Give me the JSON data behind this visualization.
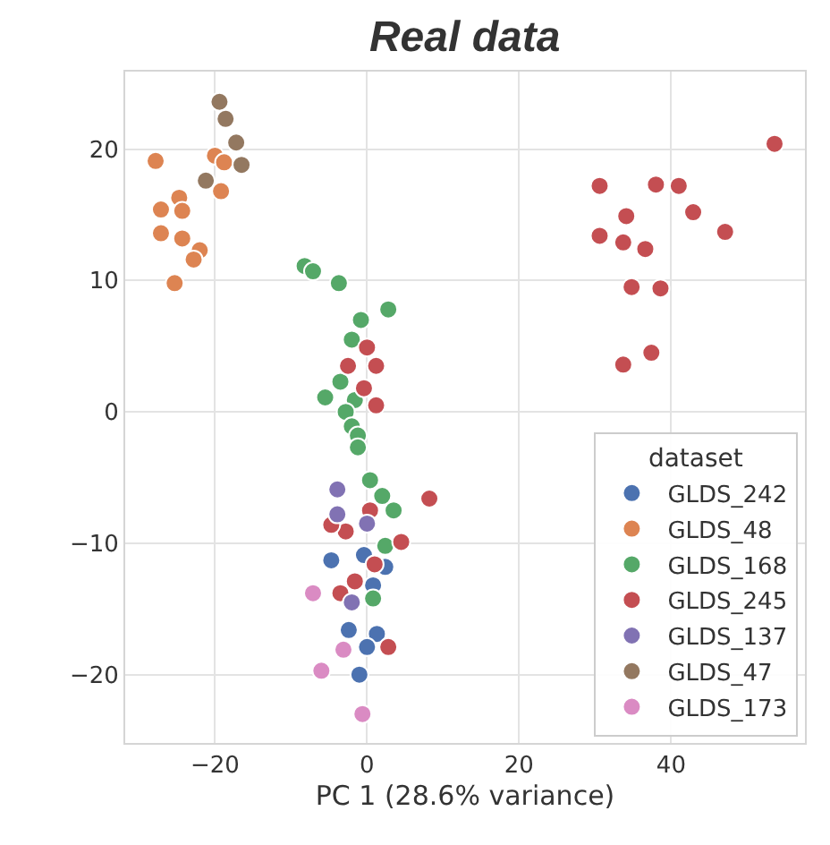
{
  "chart_data": {
    "type": "scatter",
    "title": "Real data",
    "xlabel": "PC 1 (28.6% variance)",
    "legend_title": "dataset",
    "legend": "bottom right",
    "grid": true,
    "marker": "circle",
    "xlim": [
      -31.8,
      57.6
    ],
    "ylim": [
      -25.2,
      25.9
    ],
    "xticks": [
      {
        "value": -20,
        "label": "−20"
      },
      0,
      20,
      40
    ],
    "yticks": [
      {
        "value": -20,
        "label": "−20"
      },
      {
        "value": -10,
        "label": "−10"
      },
      0,
      10,
      20
    ],
    "series": [
      {
        "name": "GLDS_242",
        "color": "#4c72b0",
        "x": [
          -4.7,
          -0.4,
          2.4,
          0.8,
          -2.4,
          1.3,
          0,
          -1.0
        ],
        "values": [
          -11.3,
          -10.9,
          -11.8,
          -13.2,
          -16.6,
          -16.9,
          -17.9,
          -20.0
        ]
      },
      {
        "name": "GLDS_48",
        "color": "#dd8452",
        "x": [
          -27.8,
          -20.0,
          -18.8,
          -19.2,
          -24.7,
          -27.1,
          -24.3,
          -27.1,
          -24.3,
          -22.0,
          -22.8,
          -25.3
        ],
        "values": [
          19.1,
          19.5,
          19.0,
          16.8,
          16.3,
          15.4,
          15.3,
          13.6,
          13.2,
          12.3,
          11.6,
          9.8
        ]
      },
      {
        "name": "GLDS_168",
        "color": "#55a868",
        "x": [
          -8.2,
          -7.1,
          -3.7,
          2.8,
          -0.8,
          -2.0,
          -3.5,
          -5.5,
          -1.6,
          -2.8,
          -2.0,
          -1.2,
          -1.2,
          0.4,
          2.0,
          3.5,
          2.4,
          0.8
        ],
        "values": [
          11.1,
          10.7,
          9.8,
          7.8,
          7.0,
          5.5,
          2.3,
          1.1,
          0.9,
          0,
          -1.1,
          -1.8,
          -2.7,
          -5.2,
          -6.4,
          -7.5,
          -10.2,
          -14.2
        ]
      },
      {
        "name": "GLDS_245",
        "color": "#c44e52",
        "x": [
          0,
          -2.5,
          1.2,
          1.2,
          -0.4,
          8.2,
          0.4,
          -2.8,
          -4.7,
          4.5,
          1.0,
          -1.6,
          -3.5,
          2.8,
          53.6,
          30.6,
          38.0,
          41.0,
          34.1,
          42.9,
          30.6,
          33.7,
          36.6,
          47.1,
          34.8,
          38.6,
          37.4,
          33.7
        ],
        "values": [
          4.9,
          3.5,
          3.5,
          0.5,
          1.8,
          -6.6,
          -7.5,
          -9.1,
          -8.6,
          -9.9,
          -11.6,
          -12.9,
          -13.8,
          -17.9,
          20.4,
          17.2,
          17.3,
          17.2,
          14.9,
          15.2,
          13.4,
          12.9,
          12.4,
          13.7,
          9.5,
          9.4,
          4.5,
          3.6
        ]
      },
      {
        "name": "GLDS_137",
        "color": "#8172b3",
        "x": [
          -3.9,
          -3.9,
          0,
          -2.0
        ],
        "values": [
          -5.9,
          -7.8,
          -8.5,
          -14.5
        ]
      },
      {
        "name": "GLDS_47",
        "color": "#937860",
        "x": [
          -19.4,
          -18.6,
          -17.2,
          -16.5,
          -21.2
        ],
        "values": [
          23.6,
          22.3,
          20.5,
          18.8,
          17.6
        ]
      },
      {
        "name": "GLDS_173",
        "color": "#da8bc3",
        "x": [
          -7.1,
          -3.1,
          -6.0,
          -0.6
        ],
        "values": [
          -13.8,
          -18.1,
          -19.7,
          -23.0
        ]
      }
    ]
  }
}
